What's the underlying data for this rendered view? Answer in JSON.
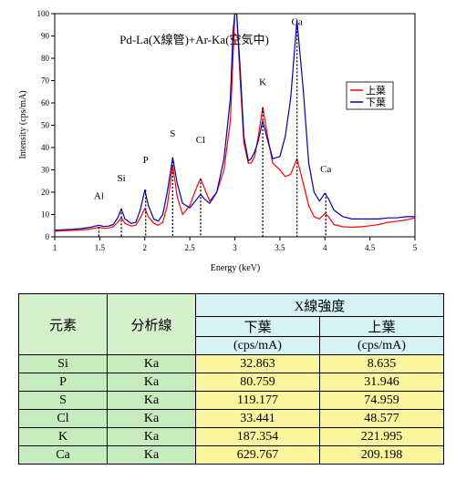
{
  "chart_data": {
    "type": "line",
    "title": "Pd-La(X線管)+Ar-Ka(空気中)",
    "xlabel": "Energy (keV)",
    "ylabel": "Intensity (cps/mA)",
    "xlim": [
      1,
      5
    ],
    "ylim": [
      0,
      100
    ],
    "xticks": [
      "1",
      "1.5",
      "2",
      "2.5",
      "3",
      "3.5",
      "4",
      "4.5",
      "5"
    ],
    "yticks": [
      "0",
      "10",
      "20",
      "30",
      "40",
      "50",
      "60",
      "70",
      "80",
      "90",
      "100"
    ],
    "legend_position": "right",
    "series": [
      {
        "name": "上葉",
        "color": "#ff0000",
        "x": [
          1.0,
          1.1,
          1.2,
          1.3,
          1.4,
          1.45,
          1.49,
          1.55,
          1.6,
          1.65,
          1.7,
          1.74,
          1.78,
          1.85,
          1.9,
          1.95,
          2.0,
          2.04,
          2.1,
          2.15,
          2.2,
          2.25,
          2.31,
          2.36,
          2.42,
          2.5,
          2.55,
          2.6,
          2.62,
          2.66,
          2.72,
          2.8,
          2.88,
          2.95,
          2.98,
          3.0,
          3.02,
          3.06,
          3.1,
          3.15,
          3.18,
          3.22,
          3.26,
          3.31,
          3.36,
          3.42,
          3.5,
          3.56,
          3.62,
          3.69,
          3.76,
          3.82,
          3.88,
          3.94,
          4.0,
          4.04,
          4.1,
          4.2,
          4.3,
          4.4,
          4.5,
          4.6,
          4.7,
          4.8,
          4.9,
          5.0
        ],
        "values": [
          2.5,
          2.7,
          2.9,
          3.1,
          3.5,
          3.9,
          4.3,
          3.8,
          4.0,
          4.5,
          6.5,
          8.6,
          6.0,
          4.8,
          5.2,
          8.5,
          12.7,
          9.0,
          6.0,
          5.2,
          6.5,
          14.0,
          31.9,
          18.0,
          10.0,
          14.0,
          19.5,
          24.5,
          26.0,
          22.0,
          16.0,
          20.0,
          30.0,
          52.0,
          80.0,
          100,
          100,
          70.0,
          42.0,
          33.0,
          33.0,
          36.0,
          45.0,
          58.0,
          46.0,
          33.0,
          30.0,
          27.0,
          28.0,
          35.0,
          24.0,
          14.0,
          9.0,
          8.0,
          10.5,
          9.0,
          5.5,
          4.5,
          4.3,
          4.5,
          5.0,
          5.5,
          6.5,
          7.0,
          7.5,
          8.5
        ]
      },
      {
        "name": "下葉",
        "color": "#0000aa",
        "x": [
          1.0,
          1.1,
          1.2,
          1.3,
          1.4,
          1.45,
          1.49,
          1.55,
          1.6,
          1.65,
          1.7,
          1.74,
          1.78,
          1.85,
          1.9,
          1.95,
          2.0,
          2.04,
          2.1,
          2.15,
          2.2,
          2.25,
          2.31,
          2.36,
          2.42,
          2.5,
          2.55,
          2.6,
          2.62,
          2.66,
          2.72,
          2.8,
          2.88,
          2.95,
          2.98,
          3.0,
          3.02,
          3.06,
          3.1,
          3.15,
          3.18,
          3.22,
          3.26,
          3.31,
          3.36,
          3.42,
          3.5,
          3.56,
          3.62,
          3.69,
          3.76,
          3.82,
          3.88,
          3.94,
          4.0,
          4.04,
          4.1,
          4.2,
          4.3,
          4.4,
          4.5,
          4.6,
          4.7,
          4.8,
          4.9,
          5.0
        ],
        "values": [
          3.0,
          3.2,
          3.4,
          3.7,
          4.3,
          4.8,
          5.2,
          4.6,
          4.8,
          5.5,
          8.5,
          12.5,
          8.0,
          6.0,
          6.5,
          12.0,
          21.0,
          14.0,
          8.0,
          7.0,
          10.0,
          20.0,
          35.5,
          24.0,
          15.0,
          13.0,
          15.5,
          18.0,
          19.0,
          17.0,
          15.0,
          20.0,
          35.0,
          62.0,
          92.0,
          100,
          100,
          75.0,
          45.0,
          34.0,
          35.0,
          38.0,
          43.0,
          52.0,
          44.0,
          35.0,
          36.0,
          45.0,
          62.0,
          97.0,
          66.0,
          33.0,
          20.0,
          16.0,
          19.5,
          17.0,
          12.0,
          9.0,
          8.0,
          8.0,
          8.0,
          8.0,
          8.5,
          8.5,
          9.0,
          9.0
        ]
      }
    ],
    "peak_labels": [
      {
        "label": "Al",
        "x": 1.49,
        "y": 4.3,
        "text_y": 17
      },
      {
        "label": "Si",
        "x": 1.74,
        "y": 12.5,
        "text_y": 25
      },
      {
        "label": "P",
        "x": 2.01,
        "y": 21,
        "text_y": 33
      },
      {
        "label": "S",
        "x": 2.31,
        "y": 35.5,
        "text_y": 45
      },
      {
        "label": "Cl",
        "x": 2.62,
        "y": 26,
        "text_y": 42
      },
      {
        "label": "K",
        "x": 3.31,
        "y": 58,
        "text_y": 68
      },
      {
        "label": "Ca",
        "x": 3.69,
        "y": 97,
        "text_y": 95
      },
      {
        "label": "Ca",
        "x": 4.01,
        "y": 19.5,
        "text_y": 29
      }
    ]
  },
  "table": {
    "headers": {
      "element": "元素",
      "line": "分析線",
      "group": "X線強度",
      "col_lower": "下葉",
      "col_upper": "上葉",
      "unit_lower": "(cps/mA)",
      "unit_upper": "(cps/mA)"
    },
    "rows": [
      {
        "element": "Si",
        "line": "Ka",
        "lower": "32.863",
        "upper": "8.635"
      },
      {
        "element": "P",
        "line": "Ka",
        "lower": "80.759",
        "upper": "31.946"
      },
      {
        "element": "S",
        "line": "Ka",
        "lower": "119.177",
        "upper": "74.959"
      },
      {
        "element": "Cl",
        "line": "Ka",
        "lower": "33.441",
        "upper": "48.577"
      },
      {
        "element": "K",
        "line": "Ka",
        "lower": "187.354",
        "upper": "221.995"
      },
      {
        "element": "Ca",
        "line": "Ka",
        "lower": "629.767",
        "upper": "209.198"
      }
    ]
  }
}
